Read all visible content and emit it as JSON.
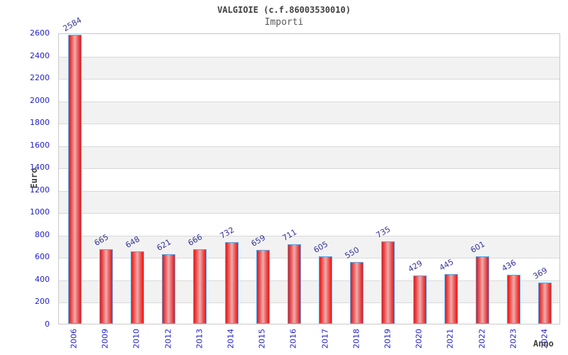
{
  "chart_data": {
    "type": "bar",
    "title": "VALGIOIE (c.f.86003530010)",
    "subtitle": "Importi",
    "ylabel": "Euro",
    "xlabel": "Anno",
    "categories": [
      "2006",
      "2009",
      "2010",
      "2012",
      "2013",
      "2014",
      "2015",
      "2016",
      "2017",
      "2018",
      "2019",
      "2020",
      "2021",
      "2022",
      "2023",
      "2024"
    ],
    "values": [
      2584,
      665,
      648,
      621,
      666,
      732,
      659,
      711,
      605,
      550,
      735,
      429,
      445,
      601,
      436,
      369
    ],
    "yticks": [
      0,
      200,
      400,
      600,
      800,
      1000,
      1200,
      1400,
      1600,
      1800,
      2000,
      2200,
      2400,
      2600
    ],
    "ylim": [
      0,
      2600
    ],
    "grid": "horizontal-bands-alternating",
    "legend": "none",
    "colors": {
      "bar_edge_red": "#e51717",
      "bar_mid_red": "#ea4d4d",
      "bar_center_pink": "#efacac",
      "bar_border_blue": "#5aa7e8",
      "tick_label_blue": "#2222cc",
      "value_label_navy": "#333399",
      "band_gray": "#f2f2f2",
      "gridline_gray": "#d9d9d9",
      "plot_border_gray": "#c9c9c9",
      "heading_gray": "#3f3f3f"
    }
  }
}
